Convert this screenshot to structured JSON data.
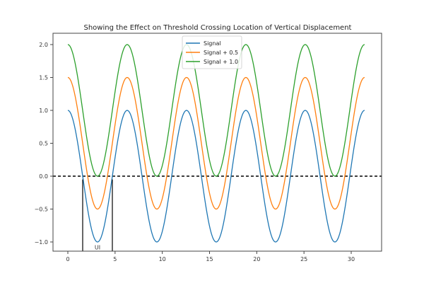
{
  "chart_data": {
    "type": "line",
    "title": "Showing the Effect on Threshold Crossing Location of Vertical Displacement",
    "xlabel": "",
    "ylabel": "",
    "xlim": [
      -2.2,
      33.3
    ],
    "ylim": [
      -1.15,
      2.15
    ],
    "x_ticks": [
      0,
      5,
      10,
      15,
      20,
      25,
      30
    ],
    "y_ticks": [
      -1.0,
      -0.5,
      0.0,
      0.5,
      1.0,
      1.5,
      2.0
    ],
    "x_tick_labels": [
      "0",
      "5",
      "10",
      "15",
      "20",
      "25",
      "30"
    ],
    "y_tick_labels": [
      "−1.0",
      "−0.5",
      "0.0",
      "0.5",
      "1.0",
      "1.5",
      "2.0"
    ],
    "grid": false,
    "legend_position": "upper center",
    "x_range": [
      0,
      31.4159
    ],
    "series": [
      {
        "name": "Signal",
        "function": "cos(x)",
        "offset": 0.0,
        "color": "#1f77b4"
      },
      {
        "name": "Signal + 0.5",
        "function": "cos(x) + 0.5",
        "offset": 0.5,
        "color": "#ff7f0e"
      },
      {
        "name": "Signal + 1.0",
        "function": "cos(x) + 1.0",
        "offset": 1.0,
        "color": "#2ca02c"
      }
    ],
    "threshold": {
      "y": 0.0,
      "style": "dashed",
      "color": "#000000"
    },
    "annotations": [
      {
        "type": "vline",
        "x": 1.5708,
        "y_from": -1.15,
        "y_to": -0.05,
        "color": "#000000"
      },
      {
        "type": "vline",
        "x": 4.7124,
        "y_from": -1.15,
        "y_to": -0.05,
        "color": "#000000"
      },
      {
        "type": "text",
        "text": "UI",
        "x": 3.1416,
        "y": -1.08
      }
    ]
  }
}
